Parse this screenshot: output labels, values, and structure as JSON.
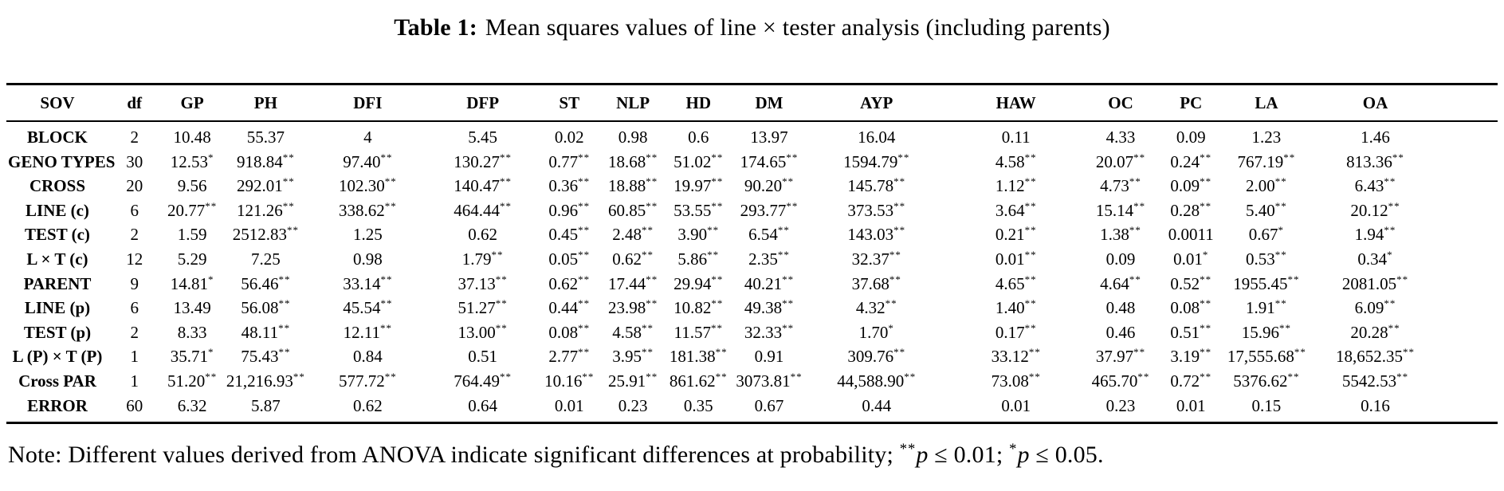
{
  "title": {
    "label": "Table 1:",
    "text": "Mean squares values of line × tester analysis (including parents)"
  },
  "table": {
    "columns": [
      "SOV",
      "df",
      "GP",
      "PH",
      "DFI",
      "DFP",
      "ST",
      "NLP",
      "HD",
      "DM",
      "AYP",
      "HAW",
      "OC",
      "PC",
      "LA",
      "OA"
    ],
    "col_widths_pct": [
      6.84,
      3.5,
      4.24,
      5.62,
      8.06,
      7.37,
      4.24,
      4.29,
      4.5,
      4.98,
      9.43,
      9.27,
      4.77,
      4.66,
      5.46,
      12.77
    ],
    "rows": [
      {
        "sov": "BLOCK",
        "values": [
          "2",
          "10.48",
          "55.37",
          "4",
          "5.45",
          "0.02",
          "0.98",
          "0.6",
          "13.97",
          "16.04",
          "0.11",
          "4.33",
          "0.09",
          "1.23",
          "1.46"
        ]
      },
      {
        "sov": "GENO TYPES",
        "values": [
          "30",
          "12.53*",
          "918.84**",
          "97.40**",
          "130.27**",
          "0.77**",
          "18.68**",
          "51.02**",
          "174.65**",
          "1594.79**",
          "4.58**",
          "20.07**",
          "0.24**",
          "767.19**",
          "813.36**"
        ]
      },
      {
        "sov": "CROSS",
        "values": [
          "20",
          "9.56",
          "292.01**",
          "102.30**",
          "140.47**",
          "0.36**",
          "18.88**",
          "19.97**",
          "90.20**",
          "145.78**",
          "1.12**",
          "4.73**",
          "0.09**",
          "2.00**",
          "6.43**"
        ]
      },
      {
        "sov": "LINE (c)",
        "values": [
          "6",
          "20.77**",
          "121.26**",
          "338.62**",
          "464.44**",
          "0.96**",
          "60.85**",
          "53.55**",
          "293.77**",
          "373.53**",
          "3.64**",
          "15.14**",
          "0.28**",
          "5.40**",
          "20.12**"
        ]
      },
      {
        "sov": "TEST (c)",
        "values": [
          "2",
          "1.59",
          "2512.83**",
          "1.25",
          "0.62",
          "0.45**",
          "2.48**",
          "3.90**",
          "6.54**",
          "143.03**",
          "0.21**",
          "1.38**",
          "0.0011",
          "0.67*",
          "1.94**"
        ]
      },
      {
        "sov": "L × T (c)",
        "values": [
          "12",
          "5.29",
          "7.25",
          "0.98",
          "1.79**",
          "0.05**",
          "0.62**",
          "5.86**",
          "2.35**",
          "32.37**",
          "0.01**",
          "0.09",
          "0.01*",
          "0.53**",
          "0.34*"
        ]
      },
      {
        "sov": "PARENT",
        "values": [
          "9",
          "14.81*",
          "56.46**",
          "33.14**",
          "37.13**",
          "0.62**",
          "17.44**",
          "29.94**",
          "40.21**",
          "37.68**",
          "4.65**",
          "4.64**",
          "0.52**",
          "1955.45**",
          "2081.05**"
        ]
      },
      {
        "sov": "LINE (p)",
        "values": [
          "6",
          "13.49",
          "56.08**",
          "45.54**",
          "51.27**",
          "0.44**",
          "23.98**",
          "10.82**",
          "49.38**",
          "4.32**",
          "1.40**",
          "0.48",
          "0.08**",
          "1.91**",
          "6.09**"
        ]
      },
      {
        "sov": "TEST (p)",
        "values": [
          "2",
          "8.33",
          "48.11**",
          "12.11**",
          "13.00**",
          "0.08**",
          "4.58**",
          "11.57**",
          "32.33**",
          "1.70*",
          "0.17**",
          "0.46",
          "0.51**",
          "15.96**",
          "20.28**"
        ]
      },
      {
        "sov": "L (P) × T (P)",
        "values": [
          "1",
          "35.71*",
          "75.43**",
          "0.84",
          "0.51",
          "2.77**",
          "3.95**",
          "181.38**",
          "0.91",
          "309.76**",
          "33.12**",
          "37.97**",
          "3.19**",
          "17,555.68**",
          "18,652.35**"
        ]
      },
      {
        "sov": "Cross PAR",
        "values": [
          "1",
          "51.20**",
          "21,216.93**",
          "577.72**",
          "764.49**",
          "10.16**",
          "25.91**",
          "861.62**",
          "3073.81**",
          "44,588.90**",
          "73.08**",
          "465.70**",
          "0.72**",
          "5376.62**",
          "5542.53**"
        ]
      },
      {
        "sov": "ERROR",
        "values": [
          "60",
          "6.32",
          "5.87",
          "0.62",
          "0.64",
          "0.01",
          "0.23",
          "0.35",
          "0.67",
          "0.44",
          "0.01",
          "0.23",
          "0.01",
          "0.15",
          "0.16"
        ]
      }
    ]
  },
  "note": {
    "prefix": "Note: Different values derived from ANOVA indicate significant differences at probability; ",
    "sig_a_stars": "**",
    "sig_a_p": "p",
    "sig_a_rest": " ≤ 0.01; ",
    "sig_b_stars": "*",
    "sig_b_p": "p",
    "sig_b_rest": " ≤ 0.05."
  }
}
